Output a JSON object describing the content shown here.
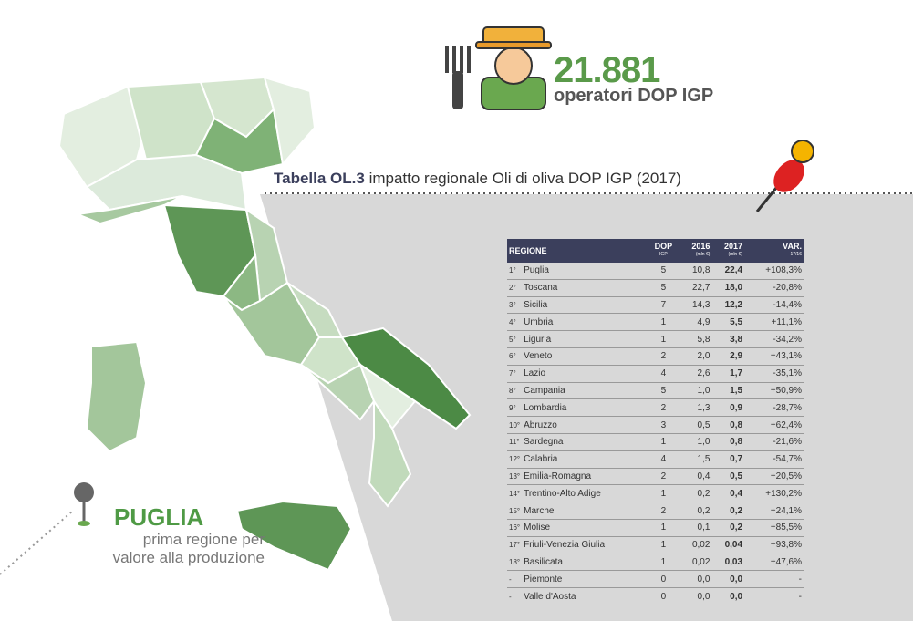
{
  "header": {
    "number": "21.881",
    "label": "operatori DOP IGP"
  },
  "table_title": {
    "code": "Tabella OL.3",
    "text": "impatto regionale Oli di oliva DOP IGP (2017)"
  },
  "callout": {
    "region": "PUGLIA",
    "text_1": "prima regione per",
    "text_2": "valore alla produzione"
  },
  "table": {
    "header": [
      [
        "REGIONE"
      ],
      [
        "DOP",
        "IGP"
      ],
      [
        "2016",
        "(mln €)"
      ],
      [
        "2017",
        "(mln €)"
      ],
      [
        "VAR.",
        "17/16"
      ]
    ],
    "rows": [
      [
        "1°",
        "Puglia",
        "5",
        "10,8",
        "22,4",
        "+108,3%"
      ],
      [
        "2°",
        "Toscana",
        "5",
        "22,7",
        "18,0",
        "-20,8%"
      ],
      [
        "3°",
        "Sicilia",
        "7",
        "14,3",
        "12,2",
        "-14,4%"
      ],
      [
        "4°",
        "Umbria",
        "1",
        "4,9",
        "5,5",
        "+11,1%"
      ],
      [
        "5°",
        "Liguria",
        "1",
        "5,8",
        "3,8",
        "-34,2%"
      ],
      [
        "6°",
        "Veneto",
        "2",
        "2,0",
        "2,9",
        "+43,1%"
      ],
      [
        "7°",
        "Lazio",
        "4",
        "2,6",
        "1,7",
        "-35,1%"
      ],
      [
        "8°",
        "Campania",
        "5",
        "1,0",
        "1,5",
        "+50,9%"
      ],
      [
        "9°",
        "Lombardia",
        "2",
        "1,3",
        "0,9",
        "-28,7%"
      ],
      [
        "10°",
        "Abruzzo",
        "3",
        "0,5",
        "0,8",
        "+62,4%"
      ],
      [
        "11°",
        "Sardegna",
        "1",
        "1,0",
        "0,8",
        "-21,6%"
      ],
      [
        "12°",
        "Calabria",
        "4",
        "1,5",
        "0,7",
        "-54,7%"
      ],
      [
        "13°",
        "Emilia-Romagna",
        "2",
        "0,4",
        "0,5",
        "+20,5%"
      ],
      [
        "14°",
        "Trentino-Alto Adige",
        "1",
        "0,2",
        "0,4",
        "+130,2%"
      ],
      [
        "15°",
        "Marche",
        "2",
        "0,2",
        "0,2",
        "+24,1%"
      ],
      [
        "16°",
        "Molise",
        "1",
        "0,1",
        "0,2",
        "+85,5%"
      ],
      [
        "17°",
        "Friuli-Venezia Giulia",
        "1",
        "0,02",
        "0,04",
        "+93,8%"
      ],
      [
        "18°",
        "Basilicata",
        "1",
        "0,02",
        "0,03",
        "+47,6%"
      ],
      [
        "-",
        "Piemonte",
        "0",
        "0,0",
        "0,0",
        "-"
      ],
      [
        "-",
        "Valle d'Aosta",
        "0",
        "0,0",
        "0,0",
        "-"
      ]
    ]
  }
}
